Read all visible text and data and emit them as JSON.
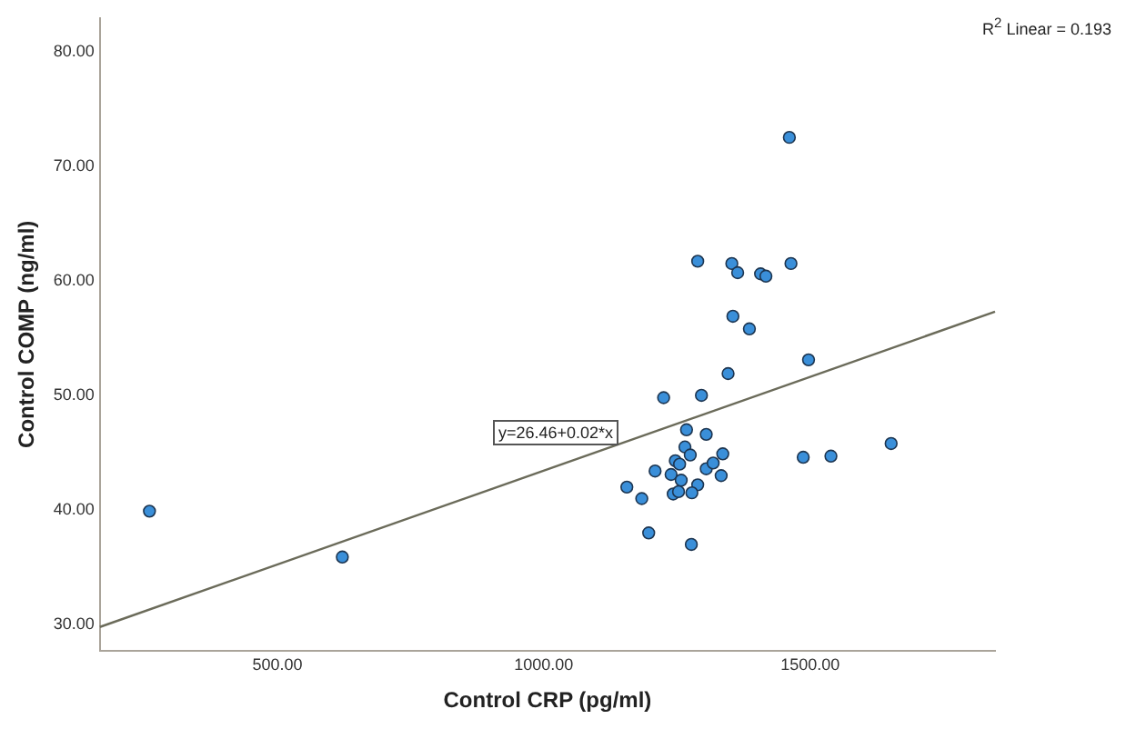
{
  "chart_data": {
    "type": "scatter",
    "xlabel": "Control CRP (pg/ml)",
    "ylabel": "Control COMP (ng/ml)",
    "xlim": [
      167,
      1847
    ],
    "ylim": [
      27.75,
      82.9
    ],
    "xticks": [
      {
        "value": 500,
        "label": "500.00"
      },
      {
        "value": 1000,
        "label": "1000.00"
      },
      {
        "value": 1500,
        "label": "1500.00"
      }
    ],
    "yticks": [
      {
        "value": 30,
        "label": "30.00"
      },
      {
        "value": 40,
        "label": "40.00"
      },
      {
        "value": 50,
        "label": "50.00"
      },
      {
        "value": 60,
        "label": "60.00"
      },
      {
        "value": 70,
        "label": "70.00"
      },
      {
        "value": 80,
        "label": "80.00"
      }
    ],
    "grid": false,
    "legend": false,
    "marker": "circle",
    "series": [
      {
        "color": "#3a8fd9",
        "x": [
          1461,
          1289,
          1353,
          1364,
          1407,
          1417,
          1464,
          1355,
          1386,
          1497,
          1346,
          1225,
          1296,
          1268,
          1305,
          1265,
          1275,
          1247,
          1255,
          1336,
          1209,
          1239,
          1258,
          1305,
          1318,
          1333,
          1289,
          1156,
          1184,
          1243,
          1253,
          1278,
          1487,
          1539,
          1652,
          1197,
          1277,
          260,
          622
        ],
        "values": [
          72.5,
          61.7,
          61.5,
          60.7,
          60.6,
          60.4,
          61.5,
          56.9,
          55.8,
          53.1,
          51.9,
          49.8,
          50.0,
          47.0,
          46.6,
          45.5,
          44.8,
          44.3,
          44.0,
          44.9,
          43.4,
          43.1,
          42.6,
          43.6,
          44.1,
          43.0,
          42.2,
          42.0,
          41.0,
          41.4,
          41.6,
          41.5,
          44.6,
          44.7,
          45.8,
          38.0,
          37.0,
          39.9,
          35.9
        ]
      },
      {
        "type": "line",
        "color": "#6b6b5a",
        "x": [
          167,
          1847
        ],
        "values": [
          29.8,
          57.3
        ],
        "marker": "none",
        "line_style": "solid"
      }
    ],
    "annotations": [
      "y=26.46+0.02*x",
      "R$^{2}$ Linear = 0.193"
    ]
  }
}
